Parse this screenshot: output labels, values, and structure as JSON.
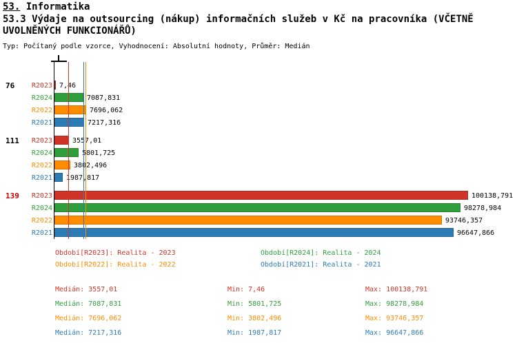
{
  "header": {
    "section_number": "53.",
    "section_name": " Informatika"
  },
  "colors": {
    "R2023": "#d03428",
    "R2024": "#2f9e3c",
    "R2022": "#ff8c00",
    "R2021": "#2d7bb5",
    "axis": "#000000",
    "group_label_highlight": "#cc0000"
  },
  "chart_data": {
    "type": "bar",
    "orientation": "horizontal",
    "title": "53.3 Výdaje na outsourcing (nákup) informačních služeb v Kč na pracovníka (VČETNĚ UVOLNĚNÝCH FUNKCIONÁŘŮ)",
    "subtitle": "Typ: Počítaný podle vzorce, Vyhodnocení: Absolutní hodnoty, Průměr: Medián",
    "xlim": [
      0,
      100138.791
    ],
    "grid": "median-lines-only",
    "legend_position": "bottom",
    "series_order": [
      "R2023",
      "R2024",
      "R2022",
      "R2021"
    ],
    "groups": [
      {
        "label": "76",
        "label_color": "#000000",
        "values": {
          "R2023": 7.46,
          "R2024": 7087.831,
          "R2022": 7696.062,
          "R2021": 7217.316
        },
        "value_labels": {
          "R2023": "7,46",
          "R2024": "7087,831",
          "R2022": "7696,062",
          "R2021": "7217,316"
        }
      },
      {
        "label": "111",
        "label_color": "#000000",
        "values": {
          "R2023": 3557.01,
          "R2024": 5801.725,
          "R2022": 3802.496,
          "R2021": 1987.817
        },
        "value_labels": {
          "R2023": "3557,01",
          "R2024": "5801,725",
          "R2022": "3802,496",
          "R2021": "1987,817"
        }
      },
      {
        "label": "139",
        "label_color": "#cc0000",
        "values": {
          "R2023": 100138.791,
          "R2024": 98278.984,
          "R2022": 93746.357,
          "R2021": 96647.866
        },
        "value_labels": {
          "R2023": "100138,791",
          "R2024": "98278,984",
          "R2022": "93746,357",
          "R2021": "96647,866"
        }
      }
    ],
    "medians": {
      "R2023": 3557.01,
      "R2024": 7087.831,
      "R2022": 7696.062,
      "R2021": 7217.316
    }
  },
  "legend": [
    {
      "series": "R2023",
      "text": "Období[R2023]: Realita - 2023",
      "color": "#d03428"
    },
    {
      "series": "R2024",
      "text": "Období[R2024]: Realita - 2024",
      "color": "#2f9e3c"
    },
    {
      "series": "R2022",
      "text": "Období[R2022]: Realita - 2022",
      "color": "#ff8c00"
    },
    {
      "series": "R2021",
      "text": "Období[R2021]: Realita - 2021",
      "color": "#2d7bb5"
    }
  ],
  "stats": [
    {
      "series": "R2023",
      "color": "#d03428",
      "median": "Medián: 3557,01",
      "min": "Min: 7,46",
      "max": "Max: 100138,791"
    },
    {
      "series": "R2024",
      "color": "#2f9e3c",
      "median": "Medián: 7087,831",
      "min": "Min: 5801,725",
      "max": "Max: 98278,984"
    },
    {
      "series": "R2022",
      "color": "#ff8c00",
      "median": "Medián: 7696,062",
      "min": "Min: 3802,496",
      "max": "Max: 93746,357"
    },
    {
      "series": "R2021",
      "color": "#2d7bb5",
      "median": "Medián: 7217,316",
      "min": "Min: 1987,817",
      "max": "Max: 96647,866"
    }
  ]
}
